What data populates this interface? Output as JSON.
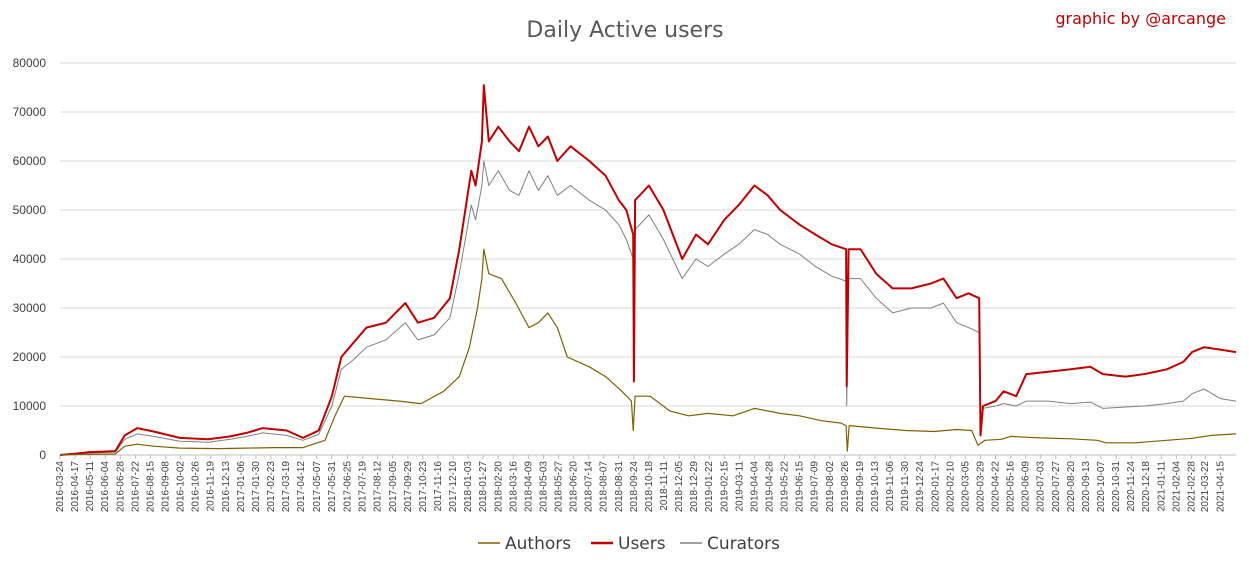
{
  "chart_data": {
    "type": "line",
    "title": "Daily Active users",
    "credit": "graphic by @arcange",
    "xlabel": "",
    "ylabel": "",
    "ylim": [
      0,
      80000
    ],
    "yticks": [
      0,
      10000,
      20000,
      30000,
      40000,
      50000,
      60000,
      70000,
      80000
    ],
    "grid": true,
    "legend": "bottom-center",
    "x_start": "2016-03-24",
    "x_end": "2021-05-10",
    "xticks": [
      "2016-03-24",
      "2016-04-17",
      "2016-05-11",
      "2016-06-04",
      "2016-06-28",
      "2016-07-22",
      "2016-08-15",
      "2016-09-08",
      "2016-10-02",
      "2016-10-26",
      "2016-11-19",
      "2016-12-13",
      "2017-01-06",
      "2017-01-30",
      "2017-02-23",
      "2017-03-19",
      "2017-04-12",
      "2017-05-07",
      "2017-05-31",
      "2017-06-25",
      "2017-07-19",
      "2017-08-12",
      "2017-09-05",
      "2017-09-29",
      "2017-10-23",
      "2017-11-16",
      "2017-12-10",
      "2018-01-03",
      "2018-01-27",
      "2018-02-20",
      "2018-03-16",
      "2018-04-09",
      "2018-05-03",
      "2018-05-27",
      "2018-06-20",
      "2018-07-14",
      "2018-08-07",
      "2018-08-31",
      "2018-09-24",
      "2018-10-18",
      "2018-11-11",
      "2018-12-05",
      "2018-12-29",
      "2019-01-22",
      "2019-02-15",
      "2019-03-11",
      "2019-04-04",
      "2019-04-28",
      "2019-05-22",
      "2019-06-15",
      "2019-07-09",
      "2019-08-02",
      "2019-08-26",
      "2019-09-19",
      "2019-10-13",
      "2019-11-06",
      "2019-11-30",
      "2019-12-24",
      "2020-01-17",
      "2020-02-10",
      "2020-03-05",
      "2020-03-29",
      "2020-04-22",
      "2020-05-16",
      "2020-06-09",
      "2020-07-03",
      "2020-07-27",
      "2020-08-20",
      "2020-09-13",
      "2020-10-07",
      "2020-10-31",
      "2020-11-24",
      "2020-12-18",
      "2021-01-11",
      "2021-02-04",
      "2021-02-28",
      "2021-03-22",
      "2021-04-15"
    ],
    "series": [
      {
        "name": "Authors",
        "color": "#7f6000",
        "values": [
          [
            "2016-03-24",
            0
          ],
          [
            "2016-05-01",
            150
          ],
          [
            "2016-06-20",
            200
          ],
          [
            "2016-07-05",
            1800
          ],
          [
            "2016-07-25",
            2200
          ],
          [
            "2016-08-20",
            1800
          ],
          [
            "2016-10-01",
            1400
          ],
          [
            "2016-12-01",
            1300
          ],
          [
            "2017-01-15",
            1400
          ],
          [
            "2017-03-01",
            1500
          ],
          [
            "2017-04-15",
            1500
          ],
          [
            "2017-05-20",
            3000
          ],
          [
            "2017-06-05",
            8000
          ],
          [
            "2017-06-20",
            12000
          ],
          [
            "2017-08-01",
            11500
          ],
          [
            "2017-09-15",
            11000
          ],
          [
            "2017-10-20",
            10500
          ],
          [
            "2017-11-25",
            13000
          ],
          [
            "2017-12-20",
            16000
          ],
          [
            "2018-01-05",
            22000
          ],
          [
            "2018-01-18",
            30000
          ],
          [
            "2018-01-25",
            36000
          ],
          [
            "2018-01-28",
            42000
          ],
          [
            "2018-02-05",
            37000
          ],
          [
            "2018-02-25",
            36000
          ],
          [
            "2018-03-20",
            31000
          ],
          [
            "2018-04-10",
            26000
          ],
          [
            "2018-04-25",
            27000
          ],
          [
            "2018-05-10",
            29000
          ],
          [
            "2018-05-25",
            26000
          ],
          [
            "2018-06-10",
            20000
          ],
          [
            "2018-07-15",
            18000
          ],
          [
            "2018-08-10",
            16000
          ],
          [
            "2018-09-05",
            13000
          ],
          [
            "2018-09-20",
            11000
          ],
          [
            "2018-09-23",
            5000
          ],
          [
            "2018-09-26",
            12000
          ],
          [
            "2018-10-20",
            12000
          ],
          [
            "2018-11-20",
            9000
          ],
          [
            "2018-12-20",
            8000
          ],
          [
            "2019-01-20",
            8500
          ],
          [
            "2019-03-01",
            8000
          ],
          [
            "2019-04-04",
            9500
          ],
          [
            "2019-05-15",
            8500
          ],
          [
            "2019-06-15",
            8000
          ],
          [
            "2019-07-20",
            7000
          ],
          [
            "2019-08-20",
            6500
          ],
          [
            "2019-08-28",
            6000
          ],
          [
            "2019-08-30",
            800
          ],
          [
            "2019-09-02",
            6000
          ],
          [
            "2019-10-15",
            5500
          ],
          [
            "2019-12-01",
            5000
          ],
          [
            "2020-01-15",
            4800
          ],
          [
            "2020-02-20",
            5200
          ],
          [
            "2020-03-15",
            5000
          ],
          [
            "2020-03-25",
            2000
          ],
          [
            "2020-04-05",
            3000
          ],
          [
            "2020-05-01",
            3200
          ],
          [
            "2020-05-16",
            3800
          ],
          [
            "2020-07-01",
            3500
          ],
          [
            "2020-08-20",
            3300
          ],
          [
            "2020-10-01",
            3000
          ],
          [
            "2020-10-15",
            2500
          ],
          [
            "2020-12-01",
            2500
          ],
          [
            "2021-01-20",
            3000
          ],
          [
            "2021-03-01",
            3400
          ],
          [
            "2021-04-01",
            4000
          ],
          [
            "2021-05-10",
            4300
          ]
        ]
      },
      {
        "name": "Users",
        "color": "#c00000",
        "values": [
          [
            "2016-03-24",
            0
          ],
          [
            "2016-04-20",
            300
          ],
          [
            "2016-05-10",
            600
          ],
          [
            "2016-06-20",
            800
          ],
          [
            "2016-07-05",
            4000
          ],
          [
            "2016-07-25",
            5500
          ],
          [
            "2016-08-20",
            4800
          ],
          [
            "2016-10-01",
            3500
          ],
          [
            "2016-11-15",
            3200
          ],
          [
            "2016-12-20",
            3800
          ],
          [
            "2017-01-15",
            4500
          ],
          [
            "2017-02-10",
            5500
          ],
          [
            "2017-03-20",
            5000
          ],
          [
            "2017-04-15",
            3500
          ],
          [
            "2017-05-10",
            5000
          ],
          [
            "2017-05-31",
            12000
          ],
          [
            "2017-06-15",
            20000
          ],
          [
            "2017-07-05",
            23000
          ],
          [
            "2017-07-25",
            26000
          ],
          [
            "2017-08-25",
            27000
          ],
          [
            "2017-09-25",
            31000
          ],
          [
            "2017-10-15",
            27000
          ],
          [
            "2017-11-10",
            28000
          ],
          [
            "2017-12-05",
            32000
          ],
          [
            "2017-12-20",
            42000
          ],
          [
            "2018-01-08",
            58000
          ],
          [
            "2018-01-15",
            55000
          ],
          [
            "2018-01-25",
            64000
          ],
          [
            "2018-01-28",
            75500
          ],
          [
            "2018-02-05",
            64000
          ],
          [
            "2018-02-20",
            67000
          ],
          [
            "2018-03-10",
            64000
          ],
          [
            "2018-03-25",
            62000
          ],
          [
            "2018-04-10",
            67000
          ],
          [
            "2018-04-25",
            63000
          ],
          [
            "2018-05-10",
            65000
          ],
          [
            "2018-05-25",
            60000
          ],
          [
            "2018-06-15",
            63000
          ],
          [
            "2018-07-15",
            60000
          ],
          [
            "2018-08-10",
            57000
          ],
          [
            "2018-08-31",
            52000
          ],
          [
            "2018-09-12",
            50000
          ],
          [
            "2018-09-23",
            45000
          ],
          [
            "2018-09-24",
            15000
          ],
          [
            "2018-09-26",
            52000
          ],
          [
            "2018-10-18",
            55000
          ],
          [
            "2018-11-10",
            50000
          ],
          [
            "2018-11-25",
            45000
          ],
          [
            "2018-12-10",
            40000
          ],
          [
            "2019-01-01",
            45000
          ],
          [
            "2019-01-20",
            43000
          ],
          [
            "2019-02-15",
            48000
          ],
          [
            "2019-03-10",
            51000
          ],
          [
            "2019-04-04",
            55000
          ],
          [
            "2019-04-25",
            53000
          ],
          [
            "2019-05-15",
            50000
          ],
          [
            "2019-06-15",
            47000
          ],
          [
            "2019-07-10",
            45000
          ],
          [
            "2019-08-05",
            43000
          ],
          [
            "2019-08-28",
            42000
          ],
          [
            "2019-08-29",
            14000
          ],
          [
            "2019-09-01",
            42000
          ],
          [
            "2019-09-20",
            42000
          ],
          [
            "2019-10-15",
            37000
          ],
          [
            "2019-11-10",
            34000
          ],
          [
            "2019-12-10",
            34000
          ],
          [
            "2020-01-10",
            35000
          ],
          [
            "2020-01-30",
            36000
          ],
          [
            "2020-02-20",
            32000
          ],
          [
            "2020-03-10",
            33000
          ],
          [
            "2020-03-27",
            32000
          ],
          [
            "2020-03-29",
            4000
          ],
          [
            "2020-04-02",
            10000
          ],
          [
            "2020-04-22",
            11000
          ],
          [
            "2020-05-05",
            13000
          ],
          [
            "2020-05-25",
            12000
          ],
          [
            "2020-06-10",
            16500
          ],
          [
            "2020-07-15",
            17000
          ],
          [
            "2020-08-20",
            17500
          ],
          [
            "2020-09-20",
            18000
          ],
          [
            "2020-10-10",
            16500
          ],
          [
            "2020-11-15",
            16000
          ],
          [
            "2020-12-15",
            16500
          ],
          [
            "2021-01-20",
            17500
          ],
          [
            "2021-02-15",
            19000
          ],
          [
            "2021-03-01",
            21000
          ],
          [
            "2021-03-20",
            22000
          ],
          [
            "2021-04-15",
            21500
          ],
          [
            "2021-05-10",
            21000
          ]
        ]
      },
      {
        "name": "Curators",
        "color": "#808080",
        "values": [
          [
            "2016-03-24",
            0
          ],
          [
            "2016-04-20",
            200
          ],
          [
            "2016-05-10",
            400
          ],
          [
            "2016-06-20",
            600
          ],
          [
            "2016-07-05",
            3200
          ],
          [
            "2016-07-25",
            4300
          ],
          [
            "2016-08-20",
            3800
          ],
          [
            "2016-10-01",
            2800
          ],
          [
            "2016-11-15",
            2600
          ],
          [
            "2016-12-20",
            3200
          ],
          [
            "2017-01-15",
            3800
          ],
          [
            "2017-02-10",
            4500
          ],
          [
            "2017-03-20",
            4000
          ],
          [
            "2017-04-15",
            3000
          ],
          [
            "2017-05-10",
            4200
          ],
          [
            "2017-05-31",
            10000
          ],
          [
            "2017-06-15",
            17500
          ],
          [
            "2017-07-05",
            19500
          ],
          [
            "2017-07-25",
            22000
          ],
          [
            "2017-08-25",
            23500
          ],
          [
            "2017-09-25",
            27000
          ],
          [
            "2017-10-15",
            23500
          ],
          [
            "2017-11-10",
            24500
          ],
          [
            "2017-12-05",
            28000
          ],
          [
            "2017-12-20",
            37000
          ],
          [
            "2018-01-08",
            51000
          ],
          [
            "2018-01-15",
            48000
          ],
          [
            "2018-01-25",
            55000
          ],
          [
            "2018-01-28",
            60000
          ],
          [
            "2018-02-05",
            55000
          ],
          [
            "2018-02-20",
            58000
          ],
          [
            "2018-03-10",
            54000
          ],
          [
            "2018-03-25",
            53000
          ],
          [
            "2018-04-10",
            58000
          ],
          [
            "2018-04-25",
            54000
          ],
          [
            "2018-05-10",
            57000
          ],
          [
            "2018-05-25",
            53000
          ],
          [
            "2018-06-15",
            55000
          ],
          [
            "2018-07-15",
            52000
          ],
          [
            "2018-08-10",
            50000
          ],
          [
            "2018-08-31",
            47000
          ],
          [
            "2018-09-12",
            44000
          ],
          [
            "2018-09-23",
            40000
          ],
          [
            "2018-09-24",
            16000
          ],
          [
            "2018-09-26",
            46000
          ],
          [
            "2018-10-18",
            49000
          ],
          [
            "2018-11-10",
            44000
          ],
          [
            "2018-11-25",
            40000
          ],
          [
            "2018-12-10",
            36000
          ],
          [
            "2019-01-01",
            40000
          ],
          [
            "2019-01-20",
            38500
          ],
          [
            "2019-02-15",
            41000
          ],
          [
            "2019-03-10",
            43000
          ],
          [
            "2019-04-04",
            46000
          ],
          [
            "2019-04-25",
            45000
          ],
          [
            "2019-05-15",
            43000
          ],
          [
            "2019-06-15",
            41000
          ],
          [
            "2019-07-10",
            38500
          ],
          [
            "2019-08-05",
            36500
          ],
          [
            "2019-08-28",
            35500
          ],
          [
            "2019-08-29",
            10000
          ],
          [
            "2019-09-01",
            36000
          ],
          [
            "2019-09-20",
            36000
          ],
          [
            "2019-10-15",
            32000
          ],
          [
            "2019-11-10",
            29000
          ],
          [
            "2019-12-10",
            30000
          ],
          [
            "2020-01-10",
            30000
          ],
          [
            "2020-01-30",
            31000
          ],
          [
            "2020-02-20",
            27000
          ],
          [
            "2020-03-10",
            26000
          ],
          [
            "2020-03-27",
            25000
          ],
          [
            "2020-03-29",
            4000
          ],
          [
            "2020-04-02",
            9500
          ],
          [
            "2020-04-22",
            10000
          ],
          [
            "2020-05-05",
            10500
          ],
          [
            "2020-05-25",
            10000
          ],
          [
            "2020-06-10",
            11000
          ],
          [
            "2020-07-15",
            11000
          ],
          [
            "2020-08-20",
            10500
          ],
          [
            "2020-09-20",
            10800
          ],
          [
            "2020-10-10",
            9500
          ],
          [
            "2020-11-15",
            9800
          ],
          [
            "2020-12-15",
            10000
          ],
          [
            "2021-01-20",
            10500
          ],
          [
            "2021-02-15",
            11000
          ],
          [
            "2021-03-01",
            12500
          ],
          [
            "2021-03-20",
            13500
          ],
          [
            "2021-04-15",
            11500
          ],
          [
            "2021-05-10",
            11000
          ]
        ]
      }
    ]
  }
}
